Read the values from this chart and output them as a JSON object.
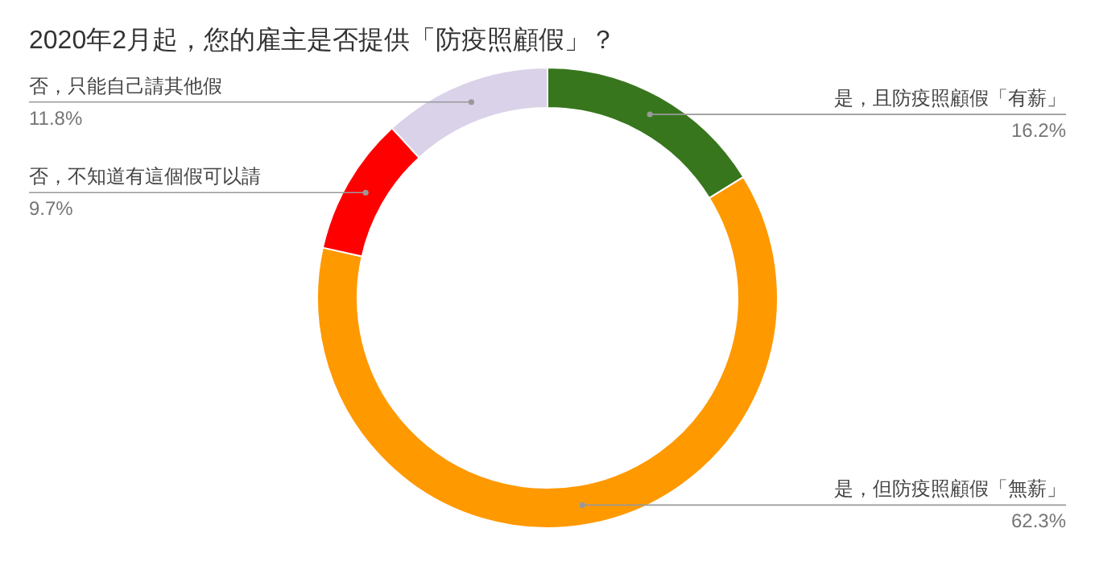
{
  "chart_data": {
    "type": "donut",
    "title": "2020年2月起，您的雇主是否提供「防疫照顧假」？",
    "categories": [
      "是，且防疫照顧假「有薪」",
      "是，但防疫照顧假「無薪」",
      "否，不知道有這個假可以請",
      "否，只能自己請其他假"
    ],
    "values": [
      16.2,
      62.3,
      9.7,
      11.8
    ],
    "colors": [
      "#38761d",
      "#ff9900",
      "#ff0000",
      "#d9d2e9"
    ],
    "value_labels": [
      "16.2%",
      "62.3%",
      "9.7%",
      "11.8%"
    ]
  }
}
